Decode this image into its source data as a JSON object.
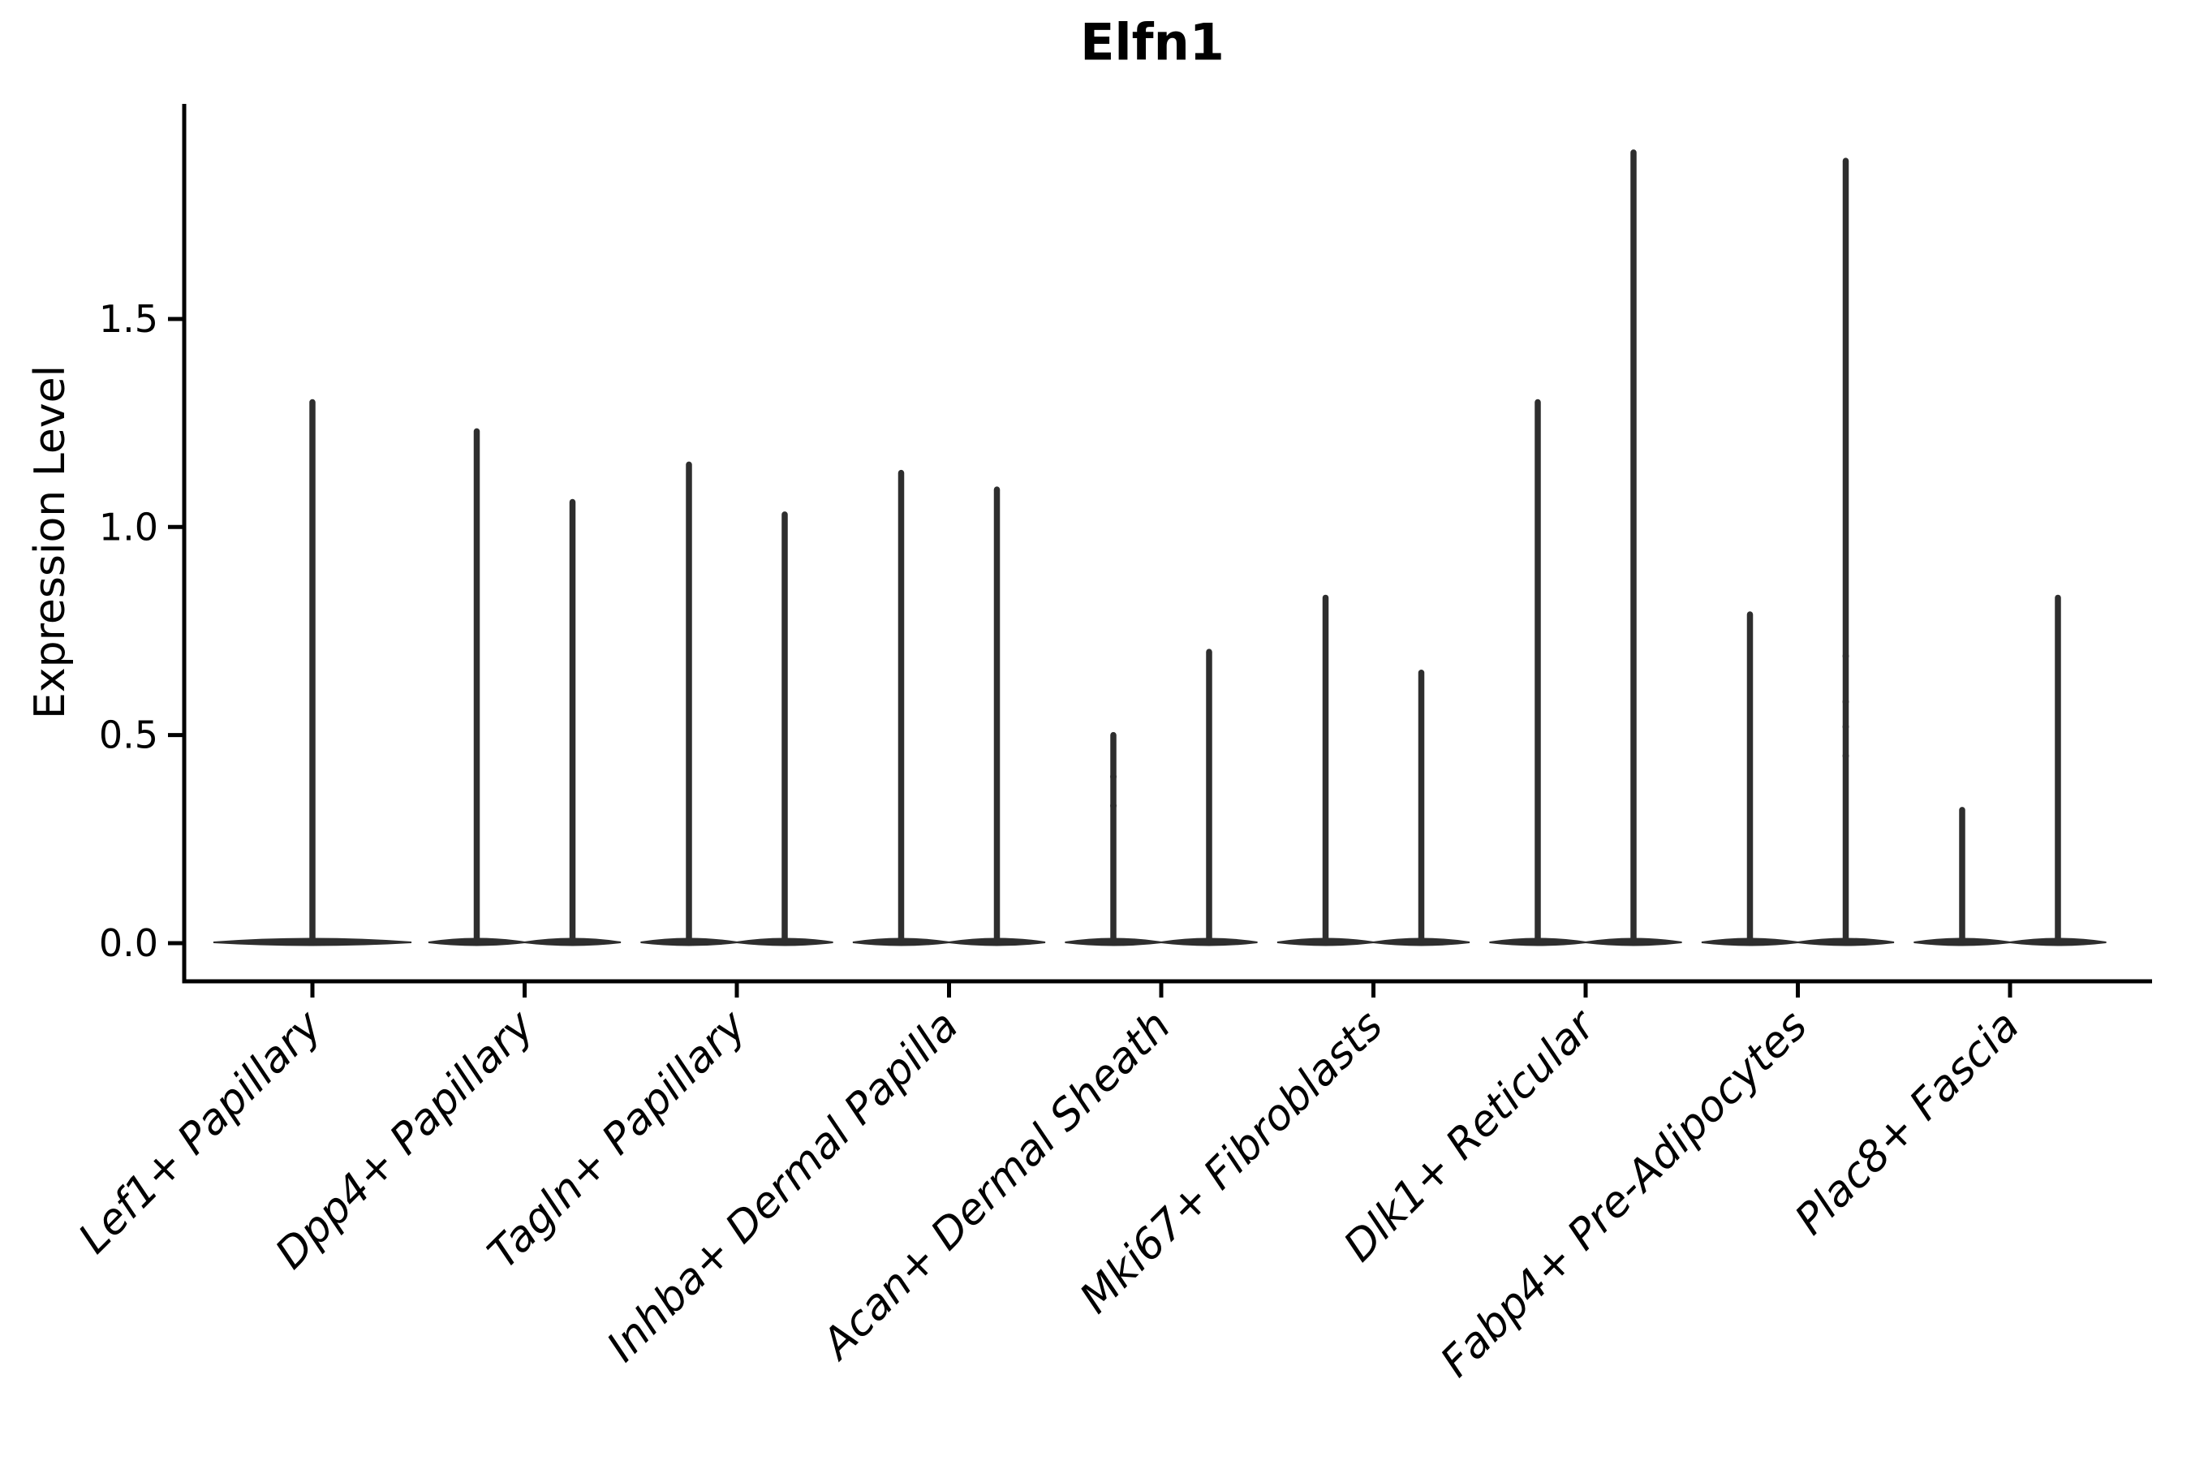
{
  "chart_data": {
    "type": "violin",
    "title": "Elfn1",
    "xlabel": "",
    "ylabel": "Expression Level",
    "ylim": [
      0,
      2.0
    ],
    "grid": false,
    "legend": null,
    "yticks": [
      {
        "label": "0.0",
        "value": 0.0
      },
      {
        "label": "0.5",
        "value": 0.5
      },
      {
        "label": "1.0",
        "value": 1.0
      },
      {
        "label": "1.5",
        "value": 1.5
      }
    ],
    "categories": [
      "Lef1+ Papillary",
      "Dpp4+ Papillary",
      "Tagln+ Papillary",
      "Inhba+ Dermal Papilla",
      "Acan+ Dermal Sheath",
      "Mki67+ Fibroblasts",
      "Dlk1+ Reticular",
      "Fabp4+ Pre-Adipocytes",
      "Plac8+ Fascia"
    ],
    "groups": [
      {
        "category": "Lef1+ Papillary",
        "violins": [
          {
            "max": 1.3
          }
        ]
      },
      {
        "category": "Dpp4+ Papillary",
        "violins": [
          {
            "max": 1.23
          },
          {
            "max": 1.06
          }
        ]
      },
      {
        "category": "Tagln+ Papillary",
        "violins": [
          {
            "max": 1.15
          },
          {
            "max": 1.03
          }
        ]
      },
      {
        "category": "Inhba+ Dermal Papilla",
        "violins": [
          {
            "max": 1.13
          },
          {
            "max": 1.09
          }
        ]
      },
      {
        "category": "Acan+ Dermal Sheath",
        "violins": [
          {
            "max": 0.5
          },
          {
            "max": 0.7
          }
        ]
      },
      {
        "category": "Mki67+ Fibroblasts",
        "violins": [
          {
            "max": 0.83
          },
          {
            "max": 0.65
          }
        ]
      },
      {
        "category": "Dlk1+ Reticular",
        "violins": [
          {
            "max": 1.3
          },
          {
            "max": 1.9
          }
        ]
      },
      {
        "category": "Fabp4+ Pre-Adipocytes",
        "violins": [
          {
            "max": 0.79
          },
          {
            "max": 1.88
          }
        ]
      },
      {
        "category": "Plac8+ Fascia",
        "violins": [
          {
            "max": 0.32
          },
          {
            "max": 0.83
          }
        ]
      }
    ],
    "jitter_points": [
      {
        "group_index": 4,
        "violin_index": 0,
        "values": [
          0.4,
          0.33
        ]
      },
      {
        "group_index": 7,
        "violin_index": 1,
        "values": [
          0.69,
          0.58,
          0.52,
          0.45
        ]
      }
    ],
    "colors": {
      "violin": "#2e2e2e",
      "axis": "#000000",
      "text": "#000000",
      "background": "#ffffff"
    }
  }
}
